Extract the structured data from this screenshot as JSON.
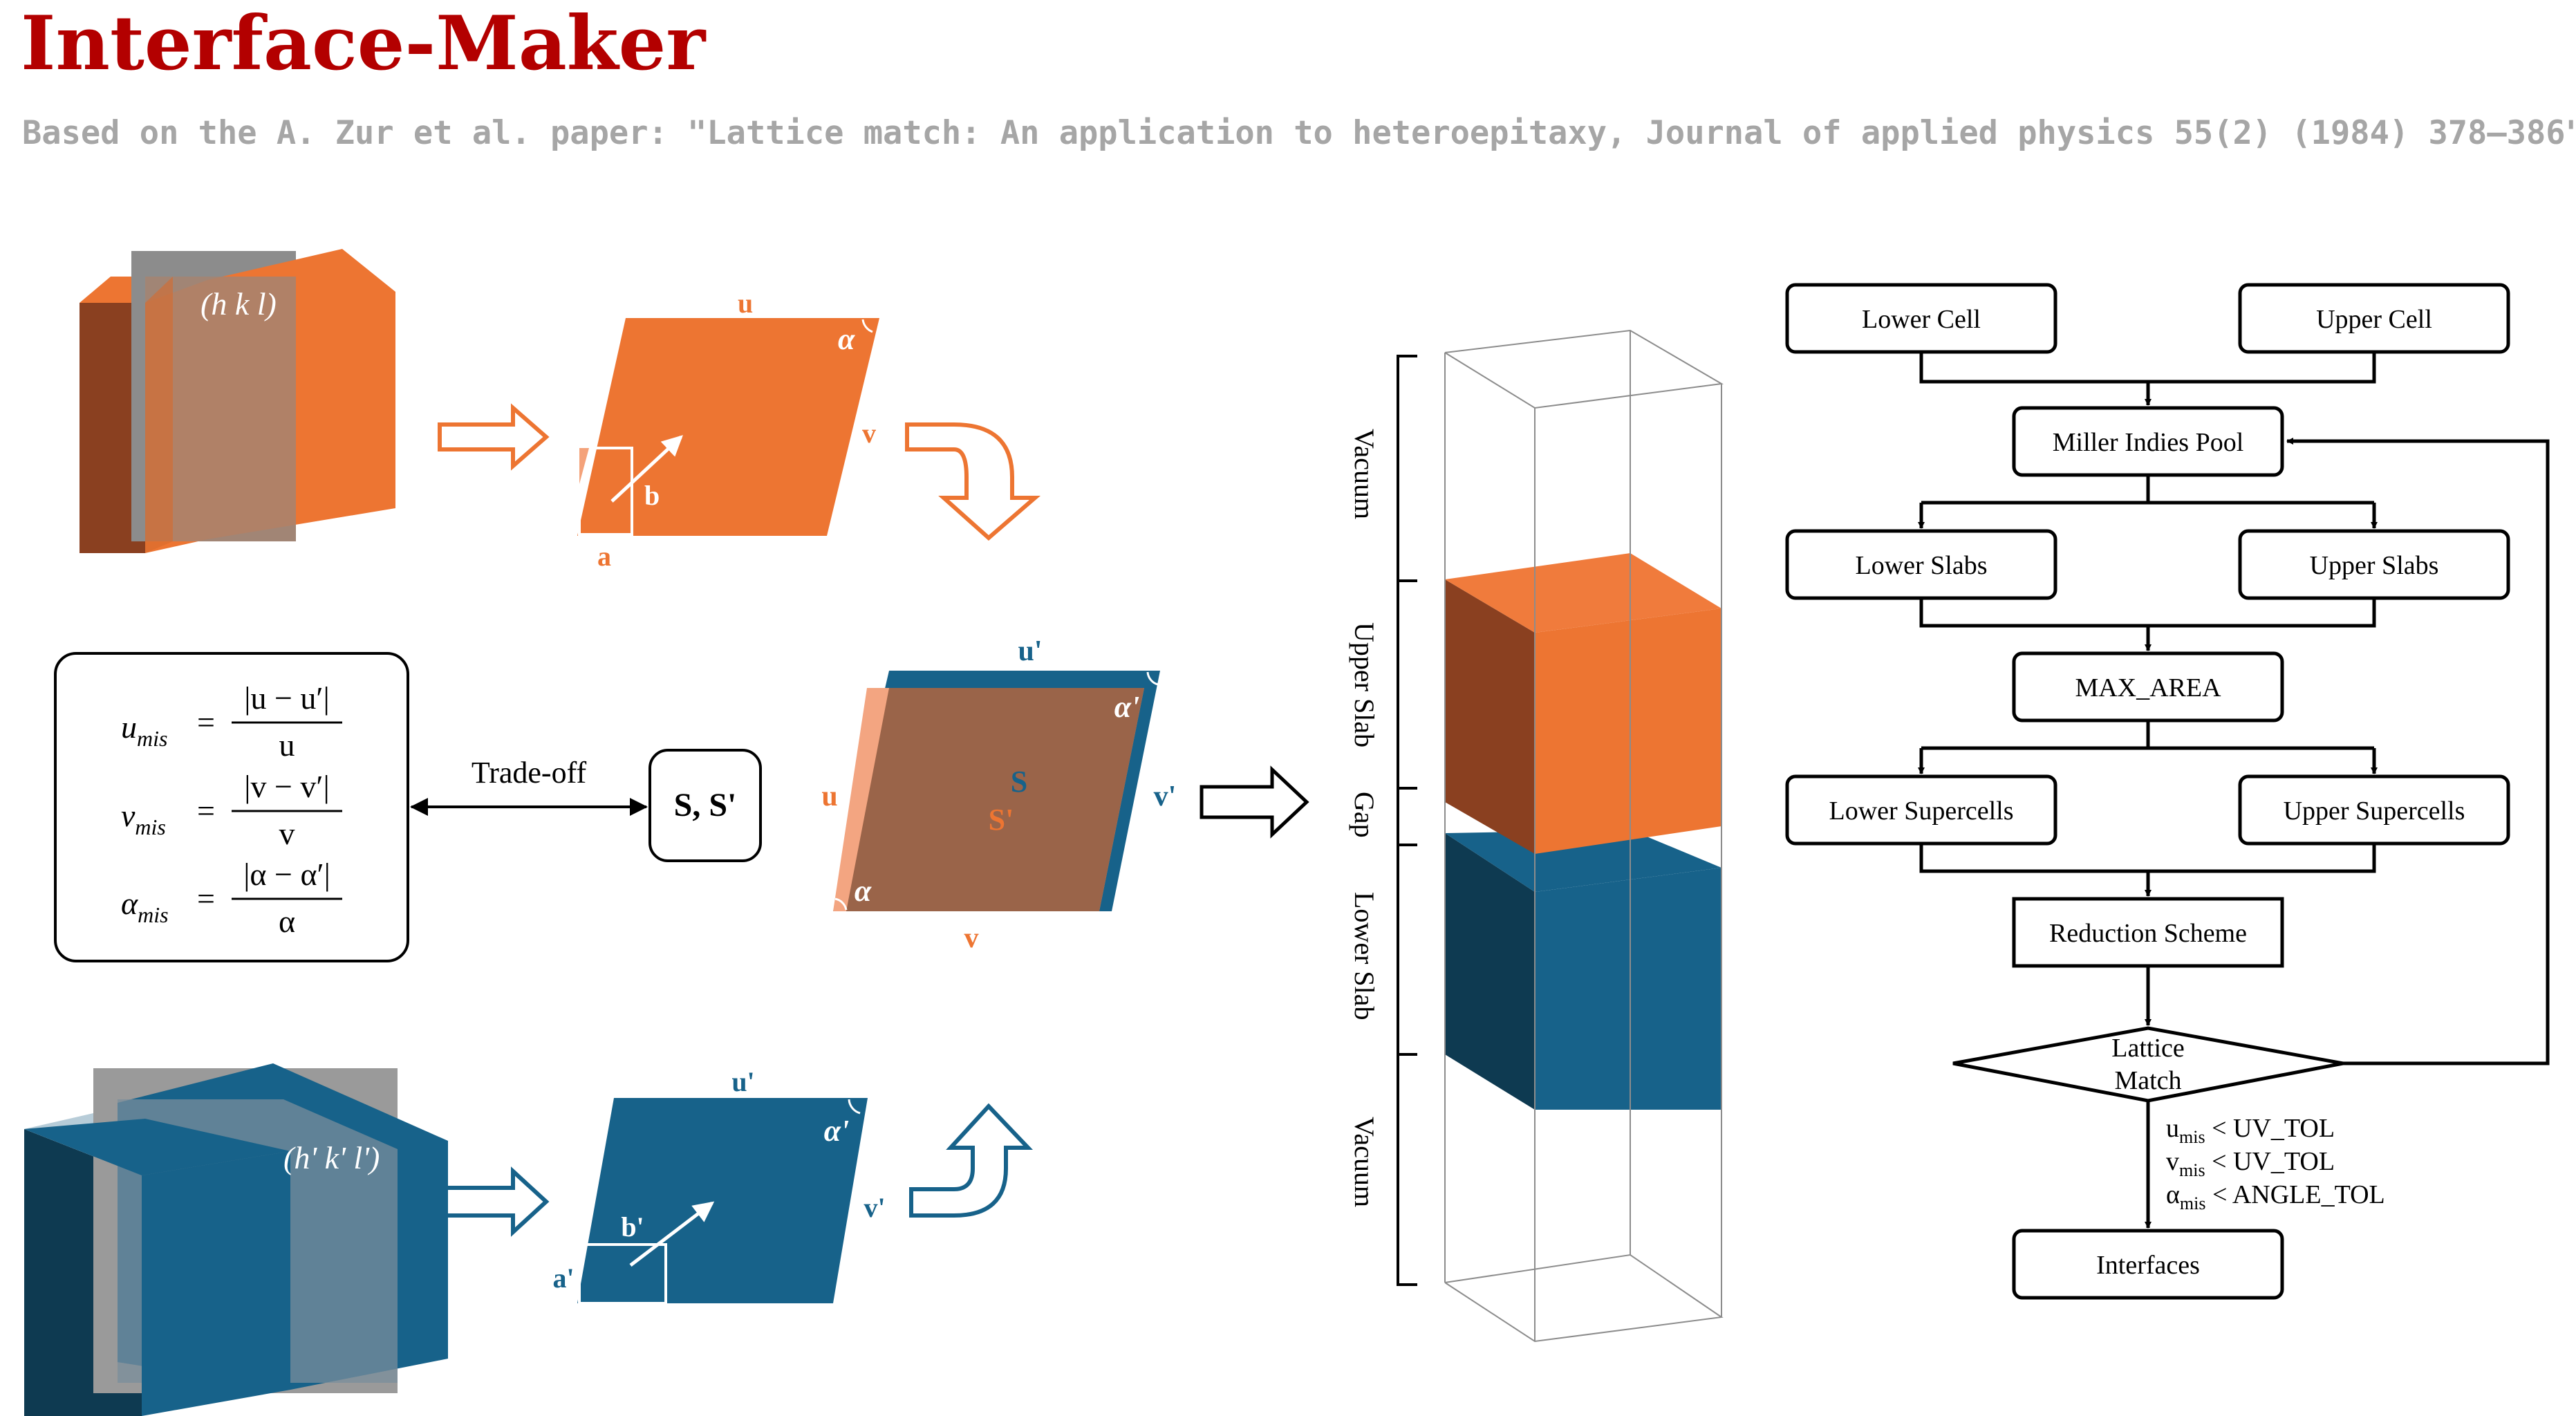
{
  "header": {
    "title": "Interface-Maker",
    "subtitle": "Based on the A. Zur et al. paper: \"Lattice match: An application to heteroepitaxy, Journal of applied physics 55(2) (1984) 378–386\"."
  },
  "colors": {
    "title": "#b30000",
    "subtitle": "#a6a6a6",
    "orange": "#ed7532",
    "orange_dark": "#8a4020",
    "blue": "#17628a",
    "blue_dark": "#0e3a51",
    "brown_overlap": "#9a6449",
    "plane_gray": "#8c8c8c"
  },
  "upper_crystal": {
    "plane_label": "(h k l)",
    "lattice": {
      "u": "u",
      "v": "v",
      "angle": "α",
      "a": "a",
      "b": "b"
    }
  },
  "lower_crystal": {
    "plane_label": "(h' k' l')",
    "lattice": {
      "u": "u'",
      "v": "v'",
      "angle": "α'",
      "a": "a'",
      "b": "b'"
    }
  },
  "mismatch": {
    "lines": [
      {
        "lhs": "u",
        "sub": "mis",
        "num": "|u − u′|",
        "den": "u"
      },
      {
        "lhs": "v",
        "sub": "mis",
        "num": "|v − v′|",
        "den": "v"
      },
      {
        "lhs": "α",
        "sub": "mis",
        "num": "|α − α′|",
        "den": "α"
      }
    ],
    "tradeoff_label": "Trade-off",
    "result_box": "S, S'"
  },
  "overlap": {
    "top_u": "u'",
    "left_u": "u",
    "right_v": "v'",
    "bottom_v": "v",
    "angle_top": "α'",
    "angle_bottom": "α",
    "S": "S",
    "S_prime": "S'"
  },
  "stack": {
    "labels": [
      "Vacuum",
      "Upper Slab",
      "Gap",
      "Lower Slab",
      "Vacuum"
    ]
  },
  "flowchart": {
    "lower_cell": "Lower Cell",
    "upper_cell": "Upper Cell",
    "miller_pool": "Miller Indies Pool",
    "lower_slabs": "Lower Slabs",
    "upper_slabs": "Upper Slabs",
    "max_area": "MAX_AREA",
    "lower_supercells": "Lower Supercells",
    "upper_supercells": "Upper Supercells",
    "reduction": "Reduction Scheme",
    "lattice_match_line1": "Lattice",
    "lattice_match_line2": "Match",
    "conditions": [
      {
        "var": "u",
        "sub": "mis",
        "rest": " < UV_TOL"
      },
      {
        "var": "v",
        "sub": "mis",
        "rest": " < UV_TOL"
      },
      {
        "var": "α",
        "sub": "mis",
        "rest": " < ANGLE_TOL"
      }
    ],
    "interfaces": "Interfaces"
  }
}
